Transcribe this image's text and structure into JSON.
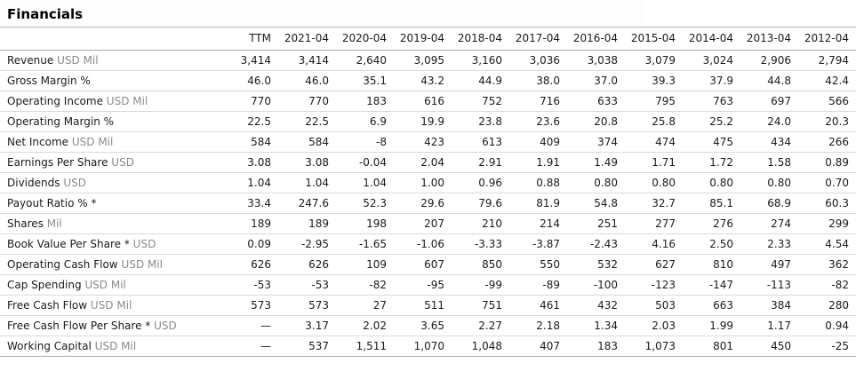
{
  "title": "Financials",
  "colors": {
    "text": "#1a1a1a",
    "unit_text": "#8b8b8b",
    "row_divider": "#d9d9d9",
    "header_divider": "#ababab",
    "background": "#ffffff"
  },
  "table": {
    "columns": [
      "TTM",
      "2021-04",
      "2020-04",
      "2019-04",
      "2018-04",
      "2017-04",
      "2016-04",
      "2015-04",
      "2014-04",
      "2013-04",
      "2012-04"
    ],
    "rows": [
      {
        "label": "Revenue",
        "unit": "USD Mil",
        "values": [
          "3,414",
          "3,414",
          "2,640",
          "3,095",
          "3,160",
          "3,036",
          "3,038",
          "3,079",
          "3,024",
          "2,906",
          "2,794"
        ]
      },
      {
        "label": "Gross Margin %",
        "unit": "",
        "values": [
          "46.0",
          "46.0",
          "35.1",
          "43.2",
          "44.9",
          "38.0",
          "37.0",
          "39.3",
          "37.9",
          "44.8",
          "42.4"
        ]
      },
      {
        "label": "Operating Income",
        "unit": "USD Mil",
        "values": [
          "770",
          "770",
          "183",
          "616",
          "752",
          "716",
          "633",
          "795",
          "763",
          "697",
          "566"
        ]
      },
      {
        "label": "Operating Margin %",
        "unit": "",
        "values": [
          "22.5",
          "22.5",
          "6.9",
          "19.9",
          "23.8",
          "23.6",
          "20.8",
          "25.8",
          "25.2",
          "24.0",
          "20.3"
        ]
      },
      {
        "label": "Net Income",
        "unit": "USD Mil",
        "values": [
          "584",
          "584",
          "-8",
          "423",
          "613",
          "409",
          "374",
          "474",
          "475",
          "434",
          "266"
        ]
      },
      {
        "label": "Earnings Per Share",
        "unit": "USD",
        "values": [
          "3.08",
          "3.08",
          "-0.04",
          "2.04",
          "2.91",
          "1.91",
          "1.49",
          "1.71",
          "1.72",
          "1.58",
          "0.89"
        ]
      },
      {
        "label": "Dividends",
        "unit": "USD",
        "values": [
          "1.04",
          "1.04",
          "1.04",
          "1.00",
          "0.96",
          "0.88",
          "0.80",
          "0.80",
          "0.80",
          "0.80",
          "0.70"
        ]
      },
      {
        "label": "Payout Ratio % *",
        "unit": "",
        "values": [
          "33.4",
          "247.6",
          "52.3",
          "29.6",
          "79.6",
          "81.9",
          "54.8",
          "32.7",
          "85.1",
          "68.9",
          "60.3"
        ]
      },
      {
        "label": "Shares",
        "unit": "Mil",
        "values": [
          "189",
          "189",
          "198",
          "207",
          "210",
          "214",
          "251",
          "277",
          "276",
          "274",
          "299"
        ]
      },
      {
        "label": "Book Value Per Share *",
        "unit": "USD",
        "values": [
          "0.09",
          "-2.95",
          "-1.65",
          "-1.06",
          "-3.33",
          "-3.87",
          "-2.43",
          "4.16",
          "2.50",
          "2.33",
          "4.54"
        ]
      },
      {
        "label": "Operating Cash Flow",
        "unit": "USD Mil",
        "values": [
          "626",
          "626",
          "109",
          "607",
          "850",
          "550",
          "532",
          "627",
          "810",
          "497",
          "362"
        ]
      },
      {
        "label": "Cap Spending",
        "unit": "USD Mil",
        "values": [
          "-53",
          "-53",
          "-82",
          "-95",
          "-99",
          "-89",
          "-100",
          "-123",
          "-147",
          "-113",
          "-82"
        ]
      },
      {
        "label": "Free Cash Flow",
        "unit": "USD Mil",
        "values": [
          "573",
          "573",
          "27",
          "511",
          "751",
          "461",
          "432",
          "503",
          "663",
          "384",
          "280"
        ]
      },
      {
        "label": "Free Cash Flow Per Share *",
        "unit": "USD",
        "values": [
          "—",
          "3.17",
          "2.02",
          "3.65",
          "2.27",
          "2.18",
          "1.34",
          "2.03",
          "1.99",
          "1.17",
          "0.94"
        ]
      },
      {
        "label": "Working Capital",
        "unit": "USD Mil",
        "values": [
          "—",
          "537",
          "1,511",
          "1,070",
          "1,048",
          "407",
          "183",
          "1,073",
          "801",
          "450",
          "-25"
        ]
      }
    ]
  }
}
